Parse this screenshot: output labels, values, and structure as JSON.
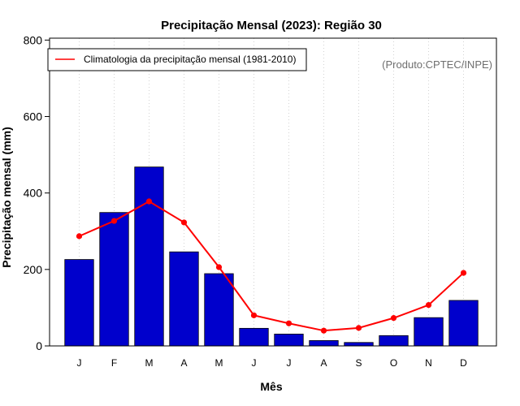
{
  "chart_data": {
    "type": "bar",
    "title": "Precipitação Mensal (2023): Região 30",
    "xlabel": "Mês",
    "ylabel": "Precipitação mensal (mm)",
    "ylim": [
      0,
      800
    ],
    "yticks": [
      0,
      200,
      400,
      600,
      800
    ],
    "categories": [
      "J",
      "F",
      "M",
      "A",
      "M",
      "J",
      "J",
      "A",
      "S",
      "O",
      "N",
      "D"
    ],
    "series": [
      {
        "name": "Precipitação mensal (2023)",
        "type": "bar",
        "color": "#0000CC",
        "values": [
          226,
          349,
          468,
          246,
          189,
          46,
          31,
          14,
          9,
          27,
          74,
          119
        ]
      },
      {
        "name": "Climatologia da precipitação mensal (1981-2010)",
        "type": "line",
        "color": "#FF0000",
        "values": [
          287,
          327,
          378,
          323,
          206,
          80,
          59,
          40,
          47,
          73,
          107,
          191
        ]
      }
    ],
    "legend": {
      "position": "top-left",
      "entries": [
        "Climatologia da precipitação mensal (1981-2010)"
      ]
    },
    "annotation": "(Produto:CPTEC/INPE)",
    "grid": "vertical-dotted"
  }
}
